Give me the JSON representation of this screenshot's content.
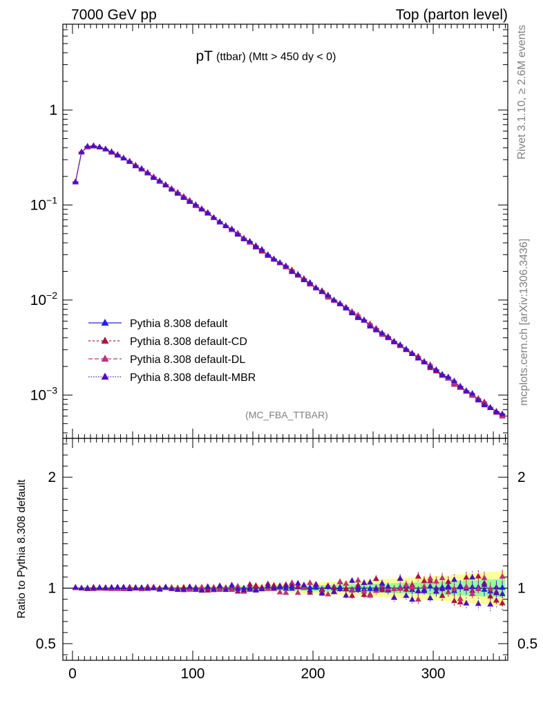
{
  "header": {
    "left": "7000 GeV pp",
    "right": "Top (parton level)"
  },
  "side_labels": {
    "rivet": "Rivet 3.1.10, ≥ 2.6M events",
    "mcplots": "mcplots.cern.ch [arXiv:1306.3436]"
  },
  "chart_data": [
    {
      "type": "line",
      "panel": "main",
      "title_main": "pT",
      "title_sub": "(ttbar) (Mtt > 450 dy < 0)",
      "annotation": "(MC_FBA_TTBAR)",
      "yscale": "log",
      "xlim": [
        -8,
        362
      ],
      "ylim": [
        0.00035,
        8
      ],
      "y_ticks": [
        {
          "value": 1,
          "base": "1",
          "exp": ""
        },
        {
          "value": 0.1,
          "base": "10",
          "exp": "−1"
        },
        {
          "value": 0.01,
          "base": "10",
          "exp": "−2"
        },
        {
          "value": 0.001,
          "base": "10",
          "exp": "−3"
        }
      ],
      "legend_position": "bottom-left",
      "series": [
        {
          "name": "Pythia 8.308 default",
          "color": "#2323e0",
          "dash": "",
          "marker": "triangle"
        },
        {
          "name": "Pythia 8.308 default-CD",
          "color": "#b01040",
          "dash": "3,3",
          "marker": "triangle"
        },
        {
          "name": "Pythia 8.308 default-DL",
          "color": "#c0307a",
          "dash": "6,3",
          "marker": "triangle"
        },
        {
          "name": "Pythia 8.308 default-MBR",
          "color": "#4a10c0",
          "dash": "1.5,2",
          "marker": "triangle"
        }
      ],
      "bin_width": 5,
      "x": [
        2.5,
        7.5,
        12.5,
        17.5,
        22.5,
        27.5,
        32.5,
        37.5,
        42.5,
        47.5,
        52.5,
        57.5,
        62.5,
        67.5,
        72.5,
        77.5,
        82.5,
        87.5,
        92.5,
        97.5,
        102.5,
        107.5,
        112.5,
        117.5,
        122.5,
        127.5,
        132.5,
        137.5,
        142.5,
        147.5,
        152.5,
        157.5,
        162.5,
        167.5,
        172.5,
        177.5,
        182.5,
        187.5,
        192.5,
        197.5,
        202.5,
        207.5,
        212.5,
        217.5,
        222.5,
        227.5,
        232.5,
        237.5,
        242.5,
        247.5,
        252.5,
        257.5,
        262.5,
        267.5,
        272.5,
        277.5,
        282.5,
        287.5,
        292.5,
        297.5,
        302.5,
        307.5,
        312.5,
        317.5,
        322.5,
        327.5,
        332.5,
        337.5,
        342.5,
        347.5,
        352.5,
        357.5
      ],
      "y": [
        0.175,
        0.36,
        0.41,
        0.415,
        0.405,
        0.385,
        0.36,
        0.335,
        0.31,
        0.285,
        0.26,
        0.238,
        0.217,
        0.197,
        0.179,
        0.163,
        0.148,
        0.134,
        0.121,
        0.11,
        0.0995,
        0.09,
        0.0815,
        0.0737,
        0.0667,
        0.0604,
        0.0546,
        0.0494,
        0.0447,
        0.0405,
        0.0366,
        0.0331,
        0.03,
        0.0271,
        0.0246,
        0.0222,
        0.0201,
        0.0182,
        0.0165,
        0.0149,
        0.0135,
        0.0122,
        0.011,
        0.00998,
        0.00903,
        0.00817,
        0.00739,
        0.00668,
        0.00605,
        0.00547,
        0.00495,
        0.00448,
        0.00405,
        0.00367,
        0.00332,
        0.003,
        0.00272,
        0.00246,
        0.00223,
        0.00201,
        0.00182,
        0.00165,
        0.00149,
        0.00135,
        0.00122,
        0.00111,
        0.001,
        0.000905,
        0.000819,
        0.00074,
        0.00067,
        0.000606
      ]
    },
    {
      "type": "line",
      "panel": "ratio",
      "ylabel": "Ratio to Pythia 8.308 default",
      "xlim": [
        -8,
        362
      ],
      "ylim": [
        0.35,
        2.35
      ],
      "y_ticks": [
        0.5,
        1,
        2
      ],
      "y_tick_labels": [
        "0.5",
        "1",
        "2"
      ],
      "x_ticks": [
        0,
        100,
        200,
        300
      ],
      "x_tick_labels": [
        "0",
        "100",
        "200",
        "300"
      ],
      "band_colors": {
        "inner": "#99ff99",
        "outer": "#ffff99"
      },
      "note": "ratios scatter around 1; spread grows with pT"
    }
  ]
}
